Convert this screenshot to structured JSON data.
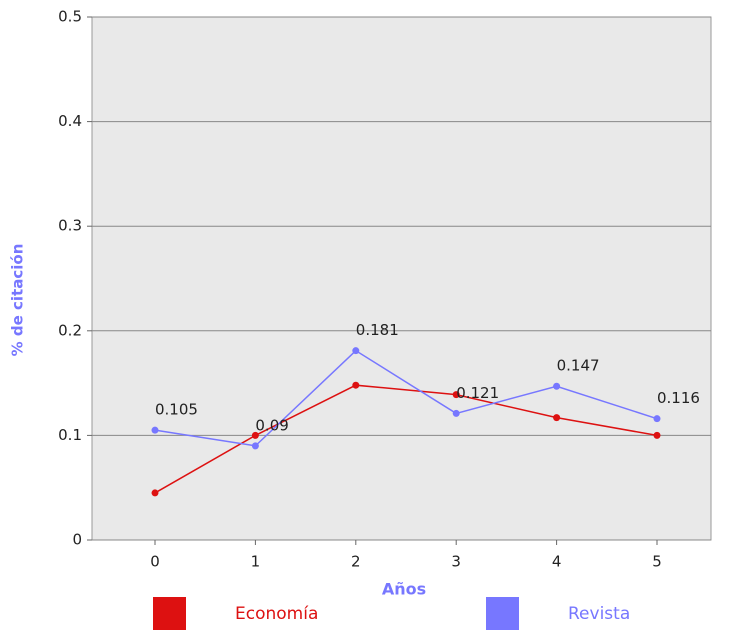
{
  "chart_data": {
    "type": "line",
    "xlabel": "Años",
    "ylabel": "% de citación",
    "categories": [
      "0",
      "1",
      "2",
      "3",
      "4",
      "5"
    ],
    "series": [
      {
        "name": "Economía",
        "color": "#dd1111",
        "values": [
          0.045,
          0.1,
          0.148,
          0.139,
          0.117,
          0.1
        ],
        "show_labels": false
      },
      {
        "name": "Revista",
        "color": "#7777ff",
        "values": [
          0.105,
          0.09,
          0.181,
          0.121,
          0.147,
          0.116
        ],
        "show_labels": true
      }
    ],
    "ylim": [
      0,
      0.5
    ],
    "yticks": [
      0,
      0.1,
      0.2,
      0.3,
      0.4,
      0.5
    ],
    "grid": true,
    "legend": "bottom"
  }
}
